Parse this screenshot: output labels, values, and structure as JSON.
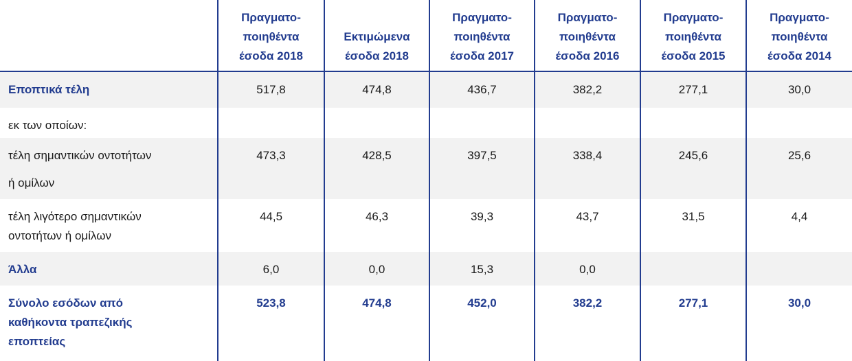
{
  "table": {
    "header": [
      [
        "Πραγματο-",
        "ποιηθέντα",
        "έσοδα 2018"
      ],
      [
        "Εκτιμώμενα",
        "έσοδα 2018"
      ],
      [
        "Πραγματο-",
        "ποιηθέντα",
        "έσοδα 2017"
      ],
      [
        "Πραγματο-",
        "ποιηθέντα",
        "έσοδα 2016"
      ],
      [
        "Πραγματο-",
        "ποιηθέντα",
        "έσοδα 2015"
      ],
      [
        "Πραγματο-",
        "ποιηθέντα",
        "έσοδα 2014"
      ]
    ],
    "rows": [
      {
        "label": [
          "Εποπτικά τέλη"
        ],
        "style": "heading",
        "cells": [
          "517,8",
          "474,8",
          "436,7",
          "382,2",
          "277,1",
          "30,0"
        ]
      },
      {
        "label": [
          "εκ των οποίων:"
        ],
        "style": "plain",
        "cells": [
          null,
          null,
          null,
          null,
          null,
          null
        ]
      },
      {
        "label": [
          "τέλη σημαντικών οντοτήτων",
          "ή ομίλων"
        ],
        "style": "plain",
        "cells": [
          "473,3",
          "428,5",
          "397,5",
          "338,4",
          "245,6",
          "25,6"
        ]
      },
      {
        "label": [
          "τέλη λιγότερο σημαντικών",
          "οντοτήτων ή ομίλων"
        ],
        "style": "plain",
        "cells": [
          "44,5",
          "46,3",
          "39,3",
          "43,7",
          "31,5",
          "4,4"
        ]
      },
      {
        "label": [
          "Άλλα"
        ],
        "style": "heading",
        "cells": [
          "6,0",
          "0,0",
          "15,3",
          "0,0",
          null,
          null
        ]
      },
      {
        "label": [
          "Σύνολο εσόδων από",
          "καθήκοντα τραπεζικής",
          "εποπτείας"
        ],
        "style": "total",
        "cells": [
          "523,8",
          "474,8",
          "452,0",
          "382,2",
          "277,1",
          "30,0"
        ]
      }
    ]
  }
}
